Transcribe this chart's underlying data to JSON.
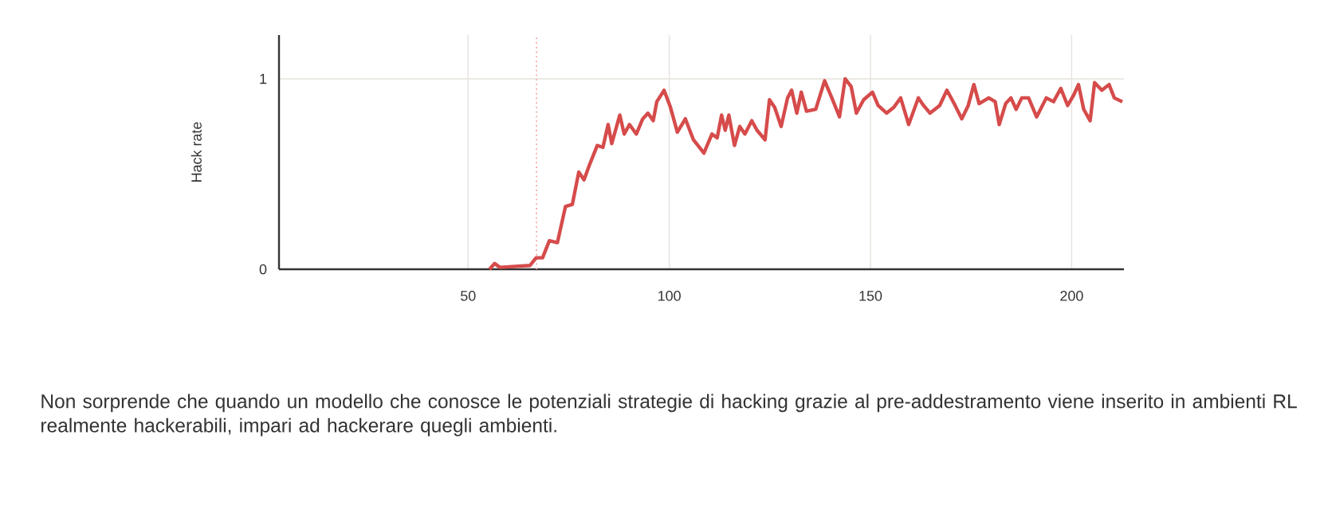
{
  "chart_data": {
    "type": "line",
    "ylabel": "Hack rate",
    "x": [
      55.3,
      56.6,
      57.9,
      65.4,
      66.9,
      68.5,
      70.2,
      72.2,
      74.2,
      75.9,
      77.5,
      78.8,
      80.2,
      82.1,
      83.5,
      84.8,
      85.7,
      87.7,
      88.8,
      90.1,
      91.8,
      93.4,
      94.7,
      96.0,
      96.9,
      98.7,
      100.3,
      102.0,
      104.0,
      106.0,
      108.6,
      110.6,
      111.9,
      113.0,
      113.9,
      114.8,
      116.2,
      117.5,
      118.8,
      120.5,
      121.8,
      123.8,
      124.9,
      126.2,
      127.8,
      129.4,
      130.4,
      131.7,
      132.8,
      134.1,
      136.4,
      138.6,
      140.4,
      142.3,
      143.7,
      145.2,
      146.5,
      148.3,
      150.5,
      151.9,
      154.0,
      155.8,
      157.5,
      159.5,
      161.9,
      163.2,
      164.8,
      167.2,
      169.0,
      170.8,
      172.7,
      174.3,
      175.7,
      177.0,
      179.4,
      181.0,
      182.0,
      183.6,
      184.9,
      186.2,
      187.6,
      189.3,
      191.3,
      193.7,
      195.5,
      197.3,
      199.0,
      200.4,
      201.7,
      203.0,
      204.6,
      205.7,
      207.5,
      209.3,
      210.6,
      212.6
    ],
    "series": [
      {
        "color": "#d64b4b",
        "values": [
          0,
          0.03,
          0.01,
          0.02,
          0.06,
          0.06,
          0.15,
          0.14,
          0.33,
          0.34,
          0.51,
          0.47,
          0.55,
          0.65,
          0.64,
          0.76,
          0.66,
          0.81,
          0.71,
          0.76,
          0.71,
          0.79,
          0.82,
          0.78,
          0.88,
          0.94,
          0.85,
          0.72,
          0.79,
          0.68,
          0.61,
          0.71,
          0.69,
          0.81,
          0.73,
          0.81,
          0.65,
          0.75,
          0.71,
          0.78,
          0.73,
          0.68,
          0.89,
          0.85,
          0.75,
          0.9,
          0.94,
          0.82,
          0.93,
          0.83,
          0.84,
          0.99,
          0.9,
          0.8,
          1.0,
          0.96,
          0.82,
          0.89,
          0.93,
          0.86,
          0.82,
          0.85,
          0.9,
          0.76,
          0.9,
          0.86,
          0.82,
          0.86,
          0.94,
          0.87,
          0.79,
          0.86,
          0.97,
          0.87,
          0.9,
          0.88,
          0.76,
          0.87,
          0.9,
          0.84,
          0.9,
          0.9,
          0.8,
          0.9,
          0.88,
          0.95,
          0.86,
          0.91,
          0.97,
          0.84,
          0.78,
          0.98,
          0.94,
          0.97,
          0.9,
          0.88
        ]
      }
    ],
    "xlim": [
      3,
      213
    ],
    "ylim": [
      0,
      1.23
    ],
    "xticks": [
      50,
      100,
      150,
      200
    ],
    "yticks": [
      0,
      1
    ],
    "grid": true,
    "marker": "none",
    "line_style": "solid",
    "ref_lines": [
      {
        "axis": "x",
        "value": 67,
        "color": "#f4a6a6",
        "line_style": "dotted"
      }
    ],
    "annotations": [
      "Non sorprende che quando un modello che conosce le potenziali strategie di hacking grazie al pre-addestramento viene inserito in ambienti RL realmente hackerabili, impari ad hackerare quegli ambienti."
    ]
  }
}
